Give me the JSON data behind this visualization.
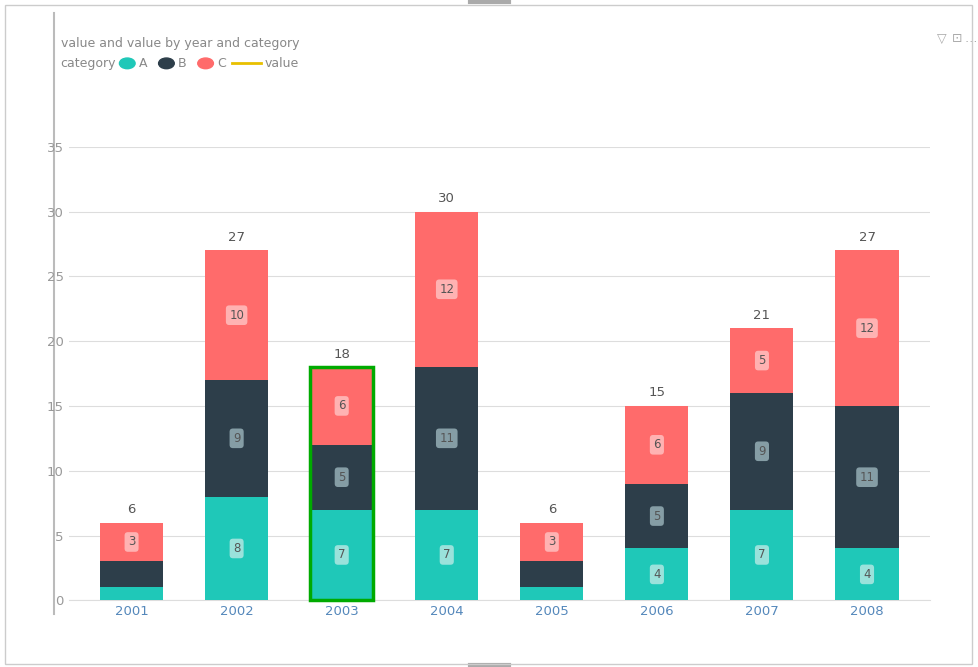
{
  "years": [
    2001,
    2002,
    2003,
    2004,
    2005,
    2006,
    2007,
    2008
  ],
  "A": [
    1,
    8,
    7,
    7,
    1,
    4,
    7,
    4
  ],
  "B": [
    2,
    9,
    5,
    11,
    2,
    5,
    9,
    11
  ],
  "C": [
    3,
    10,
    6,
    12,
    3,
    6,
    5,
    12
  ],
  "totals": [
    6,
    27,
    18,
    30,
    6,
    15,
    21,
    27
  ],
  "color_A": "#1FC8B8",
  "color_B": "#2D3E4A",
  "color_C": "#FF6B6B",
  "color_line": "#E8C000",
  "highlight_bar_index": 2,
  "highlight_color": "#00AA00",
  "title": "value and value by year and category",
  "ylim": [
    0,
    35
  ],
  "yticks": [
    0,
    5,
    10,
    15,
    20,
    25,
    30,
    35
  ],
  "bar_width": 0.6,
  "label_box_color_A": "#A8E6E0",
  "label_box_color_B": "#8FA8B0",
  "label_box_color_C": "#FFBBBB",
  "bg_color": "#FFFFFF",
  "grid_color": "#DDDDDD",
  "title_color": "#888888",
  "tick_color_x": "#5588BB",
  "tick_color_y": "#999999",
  "outer_border_color": "#CCCCCC",
  "left_accent_color": "#AAAAAA"
}
